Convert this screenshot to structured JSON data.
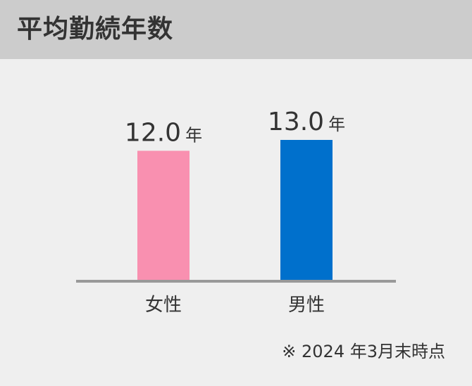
{
  "header": {
    "title": "平均勤続年数"
  },
  "chart_data": {
    "type": "bar",
    "categories": [
      "女性",
      "男性"
    ],
    "values": [
      12.0,
      13.0
    ],
    "value_labels": [
      "12.0",
      "13.0"
    ],
    "unit": "年",
    "colors": [
      "#f990b0",
      "#0070cc"
    ],
    "axis_color": "#999999",
    "ylim": [
      0,
      13.0
    ],
    "grid": false,
    "legend": "none",
    "title": "",
    "xlabel": "",
    "ylabel": ""
  },
  "footnote": "※ 2024 年3月末時点"
}
